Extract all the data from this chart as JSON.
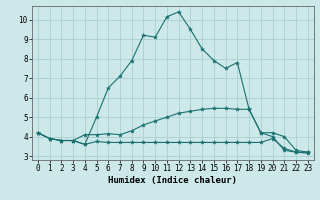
{
  "xlabel": "Humidex (Indice chaleur)",
  "xlim": [
    -0.5,
    23.5
  ],
  "ylim": [
    2.8,
    10.7
  ],
  "yticks": [
    3,
    4,
    5,
    6,
    7,
    8,
    9,
    10
  ],
  "xticks": [
    0,
    1,
    2,
    3,
    4,
    5,
    6,
    7,
    8,
    9,
    10,
    11,
    12,
    13,
    14,
    15,
    16,
    17,
    18,
    19,
    20,
    21,
    22,
    23
  ],
  "bg_color": "#cde8e8",
  "grid_color": "#aacfcf",
  "line_color": "#1a7070",
  "line1_x": [
    0,
    1,
    2,
    3,
    4,
    5,
    6,
    7,
    8,
    9,
    10,
    11,
    12,
    13,
    14,
    15,
    16,
    17,
    18,
    19,
    20,
    21,
    22,
    23
  ],
  "line1_y": [
    4.2,
    3.9,
    3.8,
    3.8,
    3.6,
    5.0,
    6.5,
    7.1,
    7.9,
    9.2,
    9.1,
    10.15,
    10.4,
    9.5,
    8.5,
    7.9,
    7.5,
    7.8,
    5.4,
    4.2,
    4.0,
    3.3,
    3.2,
    3.2
  ],
  "line2_x": [
    0,
    1,
    2,
    3,
    4,
    5,
    6,
    7,
    8,
    9,
    10,
    11,
    12,
    13,
    14,
    15,
    16,
    17,
    18,
    19,
    20,
    21,
    22,
    23
  ],
  "line2_y": [
    4.2,
    3.9,
    3.8,
    3.8,
    4.1,
    4.1,
    4.15,
    4.1,
    4.3,
    4.6,
    4.8,
    5.0,
    5.2,
    5.3,
    5.4,
    5.45,
    5.45,
    5.4,
    5.4,
    4.2,
    4.2,
    4.0,
    3.3,
    3.2
  ],
  "line3_x": [
    0,
    1,
    2,
    3,
    4,
    5,
    6,
    7,
    8,
    9,
    10,
    11,
    12,
    13,
    14,
    15,
    16,
    17,
    18,
    19,
    20,
    21,
    22,
    23
  ],
  "line3_y": [
    4.2,
    3.9,
    3.8,
    3.8,
    3.6,
    3.75,
    3.7,
    3.7,
    3.7,
    3.7,
    3.7,
    3.7,
    3.7,
    3.7,
    3.7,
    3.7,
    3.7,
    3.7,
    3.7,
    3.7,
    3.9,
    3.4,
    3.2,
    3.15
  ]
}
